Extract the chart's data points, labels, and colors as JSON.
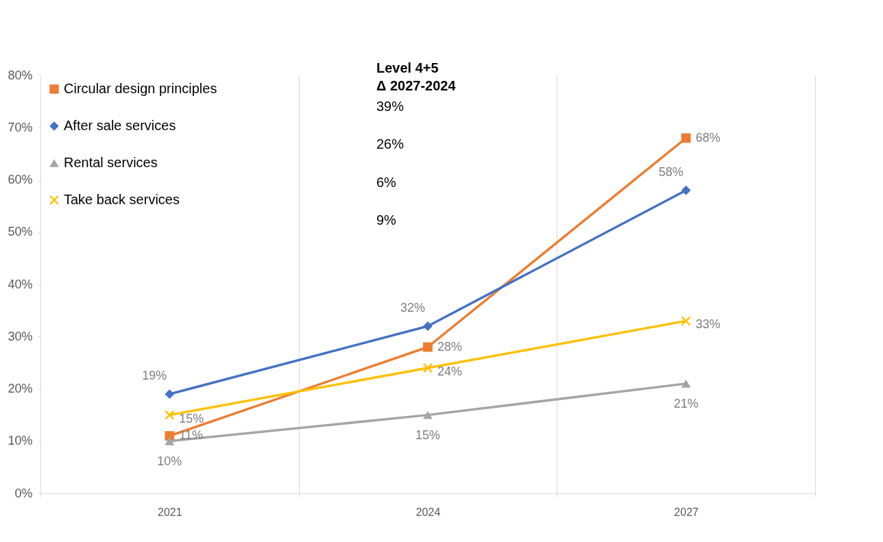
{
  "chart_data": {
    "type": "line",
    "categories": [
      "2021",
      "2024",
      "2027"
    ],
    "series": [
      {
        "name": "Circular design principles",
        "color": "#ed7d31",
        "marker": "square",
        "values": [
          11,
          28,
          68
        ],
        "value_labels": [
          "11%",
          "28%",
          "68%"
        ]
      },
      {
        "name": "After sale services",
        "color": "#4472c4",
        "marker": "diamond",
        "values": [
          19,
          32,
          58
        ],
        "value_labels": [
          "19%",
          "32%",
          "58%"
        ]
      },
      {
        "name": "Rental services",
        "color": "#a5a5a5",
        "marker": "triangle",
        "values": [
          10,
          15,
          21
        ],
        "value_labels": [
          "10%",
          "15%",
          "21%"
        ]
      },
      {
        "name": "Take back services",
        "color": "#ffc000",
        "marker": "cross",
        "values": [
          15,
          24,
          33
        ],
        "value_labels": [
          "15%",
          "24%",
          "33%"
        ]
      }
    ],
    "ylim": [
      0,
      80
    ],
    "yticks": [
      {
        "value": 0,
        "label": "0%"
      },
      {
        "value": 10,
        "label": "10%"
      },
      {
        "value": 20,
        "label": "20%"
      },
      {
        "value": 30,
        "label": "30%"
      },
      {
        "value": 40,
        "label": "40%"
      },
      {
        "value": 50,
        "label": "50%"
      },
      {
        "value": 60,
        "label": "60%"
      },
      {
        "value": 70,
        "label": "70%"
      },
      {
        "value": 80,
        "label": "80%"
      }
    ],
    "grid": "x",
    "legend": "top left",
    "line_style": "solid",
    "annotations": [
      "Level 4+5",
      "Δ 2027-2024",
      "39%",
      "26%",
      "6%",
      "9%"
    ]
  }
}
